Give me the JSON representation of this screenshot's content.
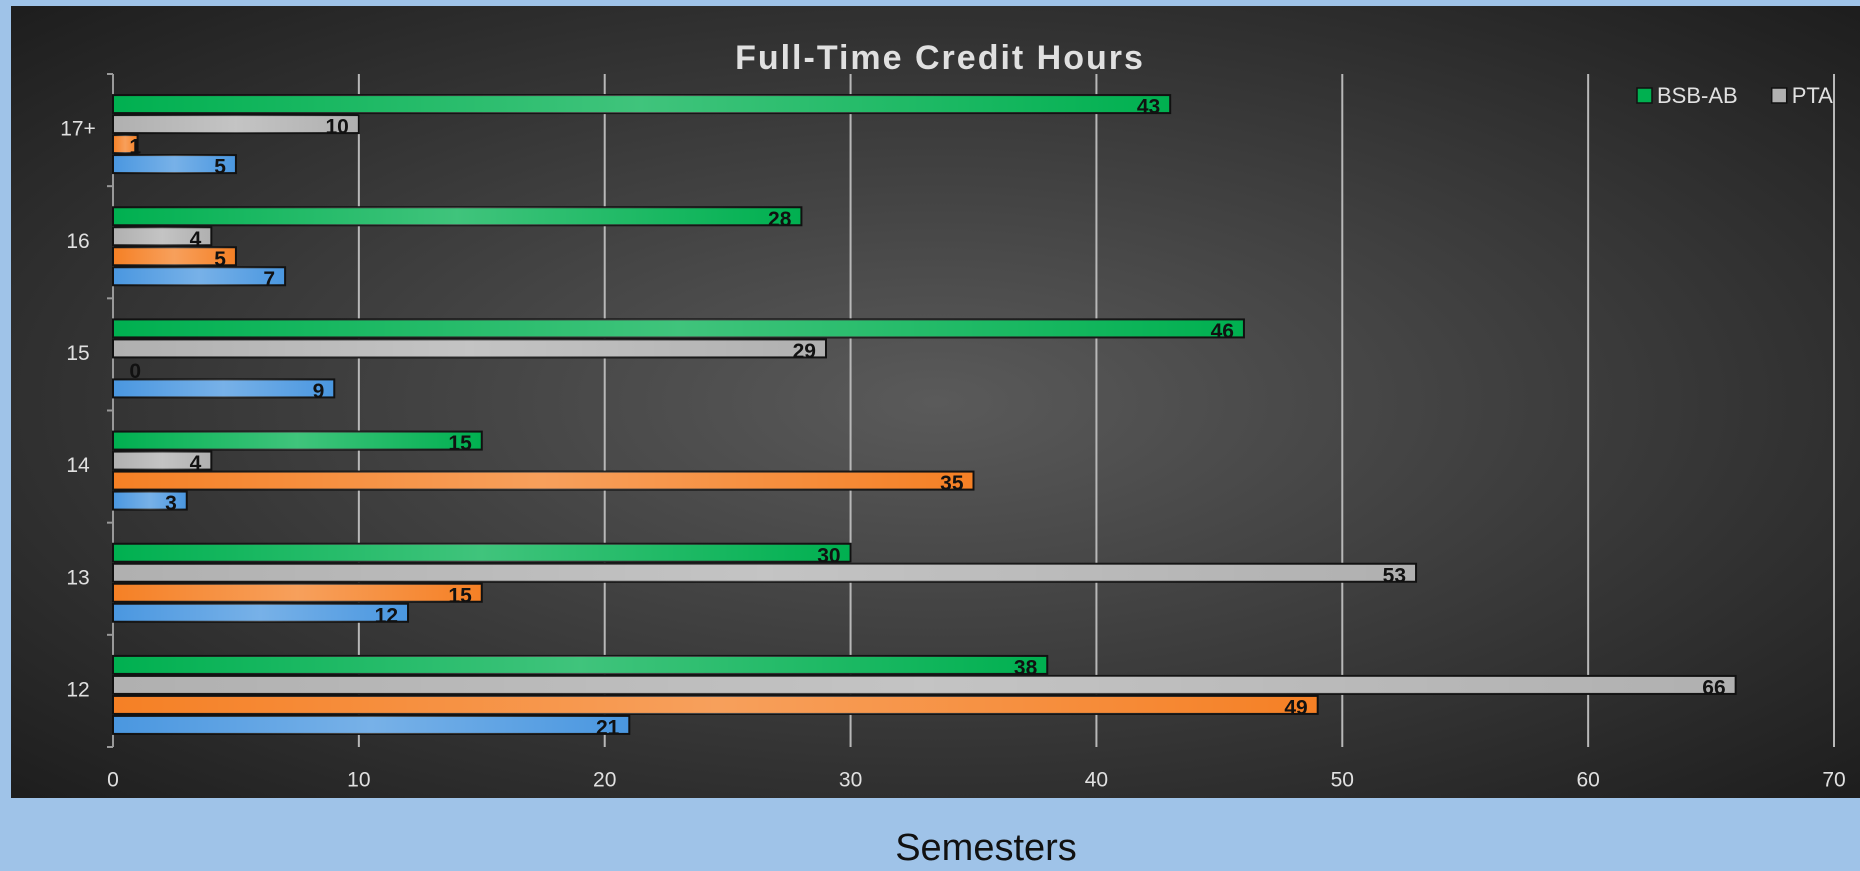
{
  "chart_data": {
    "type": "barh",
    "title": "Full-Time Credit Hours",
    "xlabel": "Semesters",
    "categories": [
      "12",
      "13",
      "14",
      "15",
      "16",
      "17+"
    ],
    "series": [
      {
        "color": "#4a97e0",
        "values": [
          21,
          12,
          3,
          9,
          7,
          5
        ]
      },
      {
        "color": "#f58025",
        "values": [
          49,
          15,
          35,
          0,
          5,
          1
        ]
      },
      {
        "name": "PTA",
        "color": "#b0b0b0",
        "values": [
          66,
          53,
          4,
          29,
          4,
          10
        ]
      },
      {
        "name": "BSB-AB",
        "color": "#00b050",
        "values": [
          38,
          30,
          15,
          46,
          28,
          43
        ]
      }
    ],
    "xlim": [
      0,
      70
    ],
    "xticks": [
      0,
      10,
      20,
      30,
      40,
      50,
      60,
      70
    ],
    "grid": true,
    "legend": "top-right"
  }
}
